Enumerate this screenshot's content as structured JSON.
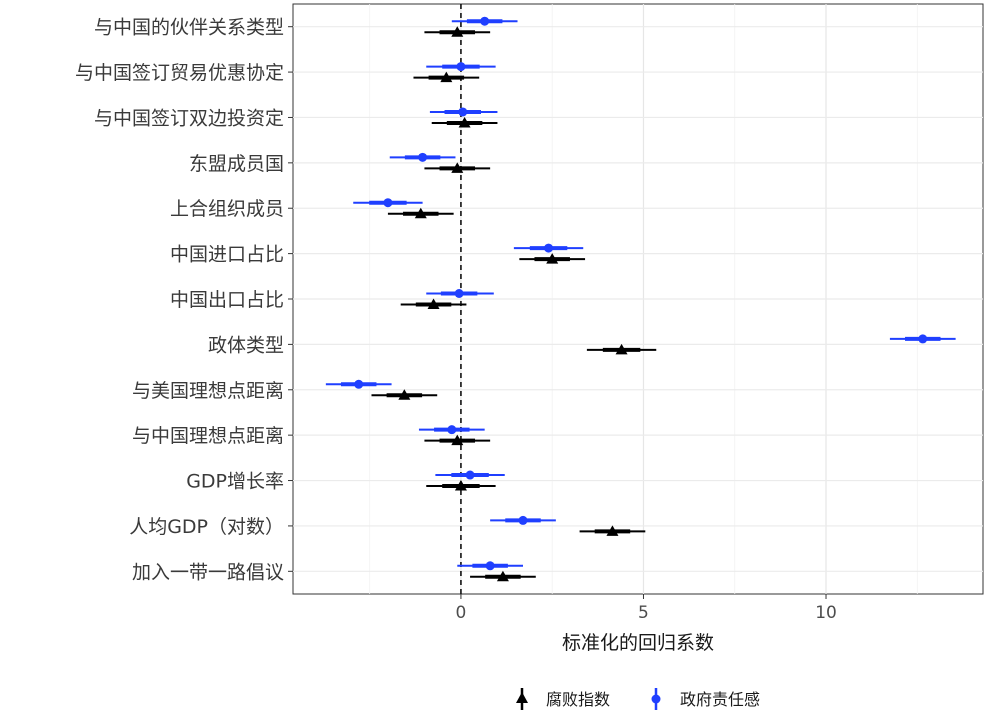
{
  "chart_data": {
    "type": "scatter",
    "subtype": "coefficient-plot",
    "title": "",
    "xlabel": "标准化的回归系数",
    "ylabel": "",
    "xlim": [
      -4.6,
      14.3
    ],
    "xticks": [
      0,
      5,
      10
    ],
    "reference_line": {
      "x": 0,
      "style": "dashed"
    },
    "grid": true,
    "legend_position": "bottom",
    "categories": [
      "与中国的伙伴关系类型",
      "与中国签订贸易优惠协定",
      "与中国签订双边投资定",
      "东盟成员国",
      "上合组织成员",
      "中国进口占比",
      "中国出口占比",
      "政体类型",
      "与美国理想点距离",
      "与中国理想点距离",
      "GDP增长率",
      "人均GDP（对数）",
      "加入一带一路倡议"
    ],
    "series": [
      {
        "name": "腐败指数",
        "color": "#000000",
        "marker": "triangle",
        "estimate": [
          -0.1,
          -0.4,
          0.1,
          -0.1,
          -1.1,
          2.5,
          -0.75,
          4.4,
          -1.55,
          -0.1,
          0.0,
          4.15,
          1.15
        ],
        "lower": [
          -1.0,
          -1.3,
          -0.8,
          -1.0,
          -2.0,
          1.6,
          -1.65,
          3.45,
          -2.45,
          -1.0,
          -0.95,
          3.25,
          0.25
        ],
        "upper": [
          0.8,
          0.5,
          1.0,
          0.8,
          -0.2,
          3.4,
          0.15,
          5.35,
          -0.65,
          0.8,
          0.95,
          5.05,
          2.05
        ]
      },
      {
        "name": "政府责任感",
        "color": "#1f3fff",
        "marker": "circle",
        "estimate": [
          0.65,
          0.0,
          0.05,
          -1.05,
          -2.0,
          2.4,
          -0.05,
          12.65,
          -2.8,
          -0.25,
          0.25,
          1.7,
          0.8
        ],
        "lower": [
          -0.25,
          -0.95,
          -0.85,
          -1.95,
          -2.95,
          1.45,
          -0.95,
          11.75,
          -3.7,
          -1.15,
          -0.7,
          0.8,
          -0.1
        ],
        "upper": [
          1.55,
          0.95,
          1.0,
          -0.15,
          -1.05,
          3.35,
          0.9,
          13.55,
          -1.9,
          0.65,
          1.2,
          2.6,
          1.7
        ]
      }
    ]
  }
}
